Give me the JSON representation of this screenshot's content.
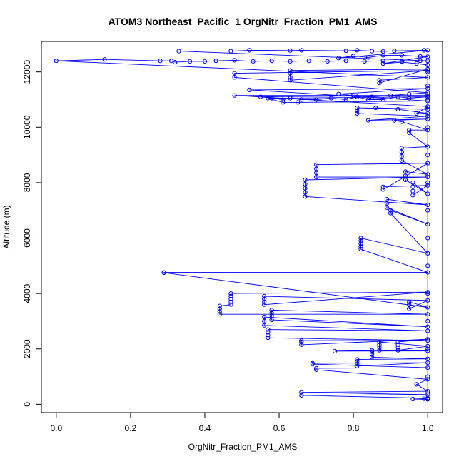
{
  "chart_data": {
    "type": "line",
    "title": "ATOM3 Northeast_Pacific_1 OrgNitr_Fraction_PM1_AMS",
    "xlabel": "OrgNitr_Fraction_PM1_AMS",
    "ylabel": "Altitude (m)",
    "xlim": [
      -0.04,
      1.04
    ],
    "ylim": [
      -300,
      13100
    ],
    "xticks": [
      0.0,
      0.2,
      0.4,
      0.6,
      0.8,
      1.0
    ],
    "xtick_labels": [
      "0.0",
      "0.2",
      "0.4",
      "0.6",
      "0.8",
      "1.0"
    ],
    "yticks": [
      0,
      2000,
      4000,
      6000,
      8000,
      10000,
      12000
    ],
    "ytick_labels": [
      "0",
      "2000",
      "4000",
      "6000",
      "8000",
      "10000",
      "12000"
    ],
    "grid": false,
    "series_color": "#0000ff",
    "marker": "open-circle",
    "points": [
      [
        1.0,
        180
      ],
      [
        0.96,
        190
      ],
      [
        0.99,
        200
      ],
      [
        1.0,
        220
      ],
      [
        0.66,
        320
      ],
      [
        1.0,
        350
      ],
      [
        0.66,
        430
      ],
      [
        1.0,
        470
      ],
      [
        0.97,
        720
      ],
      [
        1.0,
        900
      ],
      [
        0.7,
        1250
      ],
      [
        0.7,
        1300
      ],
      [
        1.0,
        1320
      ],
      [
        0.69,
        1450
      ],
      [
        0.69,
        1480
      ],
      [
        1.0,
        1500
      ],
      [
        0.81,
        1380
      ],
      [
        0.81,
        1450
      ],
      [
        0.81,
        1550
      ],
      [
        0.81,
        1620
      ],
      [
        1.0,
        1640
      ],
      [
        0.85,
        1700
      ],
      [
        0.85,
        1800
      ],
      [
        0.85,
        1900
      ],
      [
        0.85,
        1950
      ],
      [
        0.75,
        1920
      ],
      [
        1.0,
        1930
      ],
      [
        0.87,
        1950
      ],
      [
        0.87,
        2050
      ],
      [
        0.87,
        2150
      ],
      [
        0.87,
        2250
      ],
      [
        1.0,
        2100
      ],
      [
        0.92,
        1950
      ],
      [
        0.92,
        2050
      ],
      [
        0.92,
        2150
      ],
      [
        0.92,
        2250
      ],
      [
        1.0,
        2350
      ],
      [
        0.66,
        2150
      ],
      [
        0.66,
        2250
      ],
      [
        0.66,
        2300
      ],
      [
        1.0,
        2300
      ],
      [
        0.57,
        2400
      ],
      [
        0.57,
        2500
      ],
      [
        0.57,
        2600
      ],
      [
        0.57,
        2700
      ],
      [
        1.0,
        2650
      ],
      [
        0.56,
        2850
      ],
      [
        0.56,
        3000
      ],
      [
        0.56,
        3150
      ],
      [
        1.0,
        2800
      ],
      [
        0.58,
        3050
      ],
      [
        0.58,
        3200
      ],
      [
        0.58,
        3300
      ],
      [
        0.58,
        3400
      ],
      [
        1.0,
        3250
      ],
      [
        0.44,
        3250
      ],
      [
        0.44,
        3350
      ],
      [
        0.44,
        3450
      ],
      [
        0.44,
        3550
      ],
      [
        0.47,
        3600
      ],
      [
        0.47,
        3700
      ],
      [
        0.47,
        3800
      ],
      [
        0.47,
        3900
      ],
      [
        0.47,
        4000
      ],
      [
        1.0,
        4050
      ],
      [
        0.56,
        3600
      ],
      [
        0.56,
        3700
      ],
      [
        0.56,
        3800
      ],
      [
        0.56,
        3900
      ],
      [
        1.0,
        3750
      ],
      [
        0.95,
        3450
      ],
      [
        0.95,
        3600
      ],
      [
        0.95,
        3700
      ],
      [
        1.0,
        3500
      ],
      [
        0.29,
        4750
      ],
      [
        0.29,
        4760
      ],
      [
        1.0,
        4760
      ],
      [
        0.82,
        5600
      ],
      [
        0.82,
        5700
      ],
      [
        0.82,
        5800
      ],
      [
        0.82,
        5900
      ],
      [
        0.82,
        6000
      ],
      [
        1.0,
        5450
      ],
      [
        0.9,
        6900
      ],
      [
        0.9,
        7000
      ],
      [
        1.0,
        6500
      ],
      [
        0.89,
        7100
      ],
      [
        0.89,
        7250
      ],
      [
        0.89,
        7400
      ],
      [
        1.0,
        7200
      ],
      [
        0.67,
        7500
      ],
      [
        0.67,
        7650
      ],
      [
        0.67,
        7800
      ],
      [
        0.67,
        7950
      ],
      [
        0.67,
        8100
      ],
      [
        1.0,
        8200
      ],
      [
        0.7,
        8200
      ],
      [
        0.7,
        8350
      ],
      [
        0.7,
        8500
      ],
      [
        0.7,
        8650
      ],
      [
        1.0,
        8700
      ],
      [
        0.88,
        7750
      ],
      [
        0.88,
        7850
      ],
      [
        1.0,
        7900
      ],
      [
        0.96,
        7550
      ],
      [
        0.96,
        7700
      ],
      [
        0.96,
        7850
      ],
      [
        0.96,
        8000
      ],
      [
        1.0,
        7600
      ],
      [
        0.94,
        8100
      ],
      [
        0.94,
        8250
      ],
      [
        0.94,
        8400
      ],
      [
        1.0,
        8300
      ],
      [
        0.93,
        8800
      ],
      [
        0.93,
        8950
      ],
      [
        0.93,
        9100
      ],
      [
        0.93,
        9250
      ],
      [
        1.0,
        9300
      ],
      [
        0.95,
        9800
      ],
      [
        0.95,
        9900
      ],
      [
        1.0,
        9900
      ],
      [
        0.93,
        10200
      ],
      [
        0.91,
        10250
      ],
      [
        1.0,
        10300
      ],
      [
        0.84,
        10250
      ],
      [
        1.0,
        10400
      ],
      [
        0.81,
        10500
      ],
      [
        0.81,
        10600
      ],
      [
        0.81,
        10700
      ],
      [
        1.0,
        10650
      ],
      [
        0.86,
        10700
      ],
      [
        0.92,
        10650
      ],
      [
        1.0,
        10500
      ],
      [
        0.97,
        10500
      ],
      [
        1.0,
        10750
      ],
      [
        0.48,
        11150
      ],
      [
        1.0,
        11150
      ],
      [
        0.55,
        11100
      ],
      [
        0.58,
        11050
      ],
      [
        0.61,
        11000
      ],
      [
        0.63,
        11050
      ],
      [
        0.66,
        11000
      ],
      [
        0.7,
        11000
      ],
      [
        0.74,
        11050
      ],
      [
        0.78,
        11000
      ],
      [
        0.81,
        11100
      ],
      [
        0.84,
        11000
      ],
      [
        0.88,
        11000
      ],
      [
        0.92,
        11100
      ],
      [
        0.95,
        11050
      ],
      [
        1.0,
        11100
      ],
      [
        0.57,
        11050
      ],
      [
        0.61,
        10900
      ],
      [
        0.65,
        10900
      ],
      [
        1.0,
        10950
      ],
      [
        0.52,
        11350
      ],
      [
        1.0,
        11400
      ],
      [
        0.76,
        11200
      ],
      [
        0.8,
        11150
      ],
      [
        0.85,
        11100
      ],
      [
        0.9,
        11150
      ],
      [
        0.95,
        11200
      ],
      [
        1.0,
        11250
      ],
      [
        0.48,
        11800
      ],
      [
        0.48,
        11950
      ],
      [
        1.0,
        12050
      ],
      [
        0.63,
        11700
      ],
      [
        0.63,
        11800
      ],
      [
        0.63,
        11950
      ],
      [
        0.63,
        12050
      ],
      [
        1.0,
        12100
      ],
      [
        0.87,
        11600
      ],
      [
        0.87,
        11700
      ],
      [
        1.0,
        11800
      ],
      [
        0.0,
        12400
      ],
      [
        0.13,
        12450
      ],
      [
        0.28,
        12400
      ],
      [
        0.31,
        12400
      ],
      [
        0.32,
        12350
      ],
      [
        0.36,
        12380
      ],
      [
        0.4,
        12380
      ],
      [
        0.43,
        12400
      ],
      [
        0.48,
        12420
      ],
      [
        0.53,
        12380
      ],
      [
        0.58,
        12400
      ],
      [
        0.63,
        12380
      ],
      [
        0.68,
        12400
      ],
      [
        0.73,
        12380
      ],
      [
        0.78,
        12400
      ],
      [
        0.83,
        12380
      ],
      [
        0.88,
        12400
      ],
      [
        0.93,
        12380
      ],
      [
        0.98,
        12400
      ],
      [
        1.0,
        12400
      ],
      [
        0.33,
        12750
      ],
      [
        0.47,
        12750
      ],
      [
        0.52,
        12780
      ],
      [
        0.63,
        12770
      ],
      [
        0.66,
        12780
      ],
      [
        0.78,
        12760
      ],
      [
        0.81,
        12780
      ],
      [
        0.85,
        12750
      ],
      [
        0.88,
        12740
      ],
      [
        0.91,
        12760
      ],
      [
        0.99,
        12780
      ],
      [
        1.0,
        12780
      ],
      [
        0.76,
        12500
      ],
      [
        0.8,
        12580
      ],
      [
        0.84,
        12520
      ],
      [
        0.88,
        12600
      ],
      [
        0.93,
        12600
      ],
      [
        0.98,
        12560
      ],
      [
        1.0,
        12550
      ],
      [
        0.88,
        12300
      ],
      [
        0.93,
        12350
      ],
      [
        0.97,
        12300
      ],
      [
        1.0,
        12250
      ],
      [
        1.0,
        12000
      ],
      [
        1.0,
        11500
      ],
      [
        1.0,
        11000
      ],
      [
        1.0,
        10000
      ],
      [
        1.0,
        9000
      ],
      [
        1.0,
        8000
      ],
      [
        1.0,
        7000
      ],
      [
        1.0,
        6000
      ],
      [
        1.0,
        5000
      ],
      [
        1.0,
        4000
      ],
      [
        1.0,
        3000
      ],
      [
        1.0,
        2000
      ],
      [
        1.0,
        1000
      ],
      [
        1.0,
        200
      ]
    ]
  }
}
